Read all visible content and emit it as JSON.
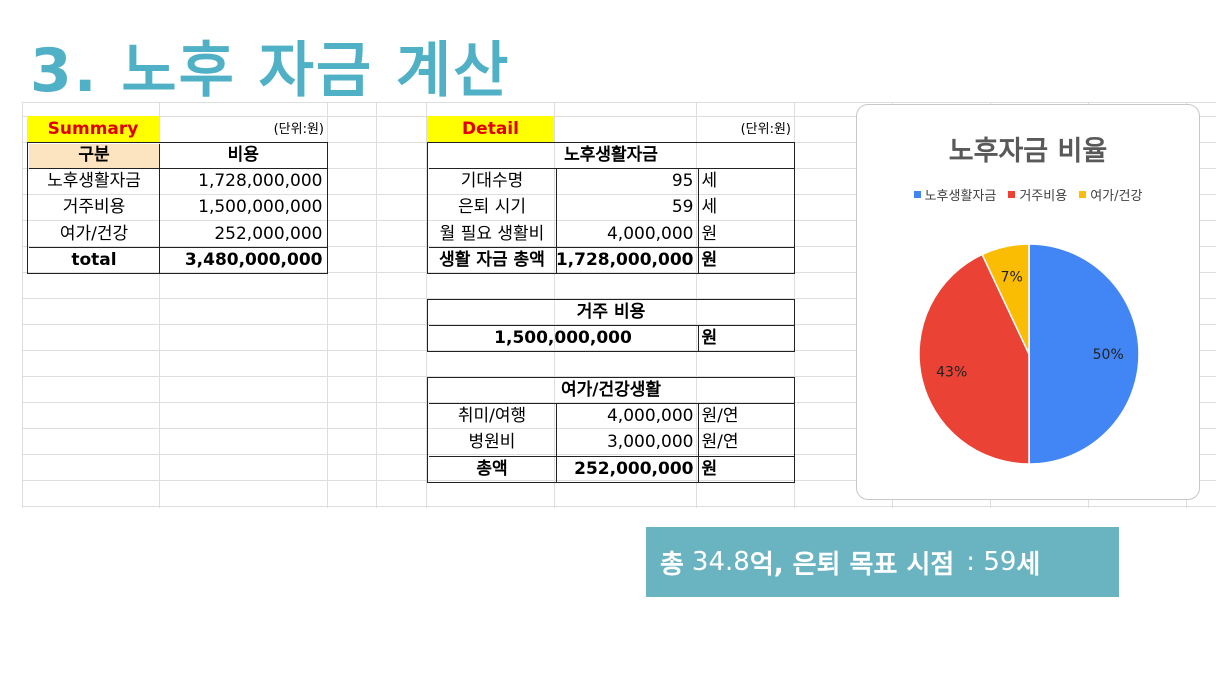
{
  "title": "3. 노후 자금 계산",
  "summary": {
    "label": "Summary",
    "unit": "(단위:원)",
    "header_category": "구분",
    "header_cost": "비용",
    "rows": [
      {
        "name": "노후생활자금",
        "value": "1,728,000,000"
      },
      {
        "name": "거주비용",
        "value": "1,500,000,000"
      },
      {
        "name": "여가/건강",
        "value": "252,000,000"
      }
    ],
    "total_label": "total",
    "total_value": "3,480,000,000"
  },
  "detail": {
    "label": "Detail",
    "unit": "(단위:원)",
    "living": {
      "header": "노후생활자금",
      "rows": [
        {
          "name": "기대수명",
          "value": "95",
          "unit": "세"
        },
        {
          "name": "은퇴 시기",
          "value": "59",
          "unit": "세"
        },
        {
          "name": "월 필요 생활비",
          "value": "4,000,000",
          "unit": "원"
        },
        {
          "name": "생활 자금 총액",
          "value": "1,728,000,000",
          "unit": "원"
        }
      ]
    },
    "housing": {
      "header": "거주 비용",
      "value": "1,500,000,000",
      "unit": "원"
    },
    "leisure": {
      "header": "여가/건강생활",
      "rows": [
        {
          "name": "취미/여행",
          "value": "4,000,000",
          "unit": "원/연"
        },
        {
          "name": "병원비",
          "value": "3,000,000",
          "unit": "원/연"
        },
        {
          "name": "총액",
          "value": "252,000,000",
          "unit": "원"
        }
      ]
    }
  },
  "chart_data": {
    "type": "pie",
    "title": "노후자금 비율",
    "legend_position": "top",
    "categories": [
      "노후생활자금",
      "거주비용",
      "여가/건강"
    ],
    "values": [
      50,
      43,
      7
    ],
    "labels": [
      "50%",
      "43%",
      "7%"
    ],
    "colors": [
      "#4285f4",
      "#ea4335",
      "#fbbc04"
    ]
  },
  "banner": {
    "part1": "총",
    "part2": "34.8",
    "part3": "억, 은퇴 목표 시점",
    "part4": ": 59",
    "part5": "세"
  }
}
